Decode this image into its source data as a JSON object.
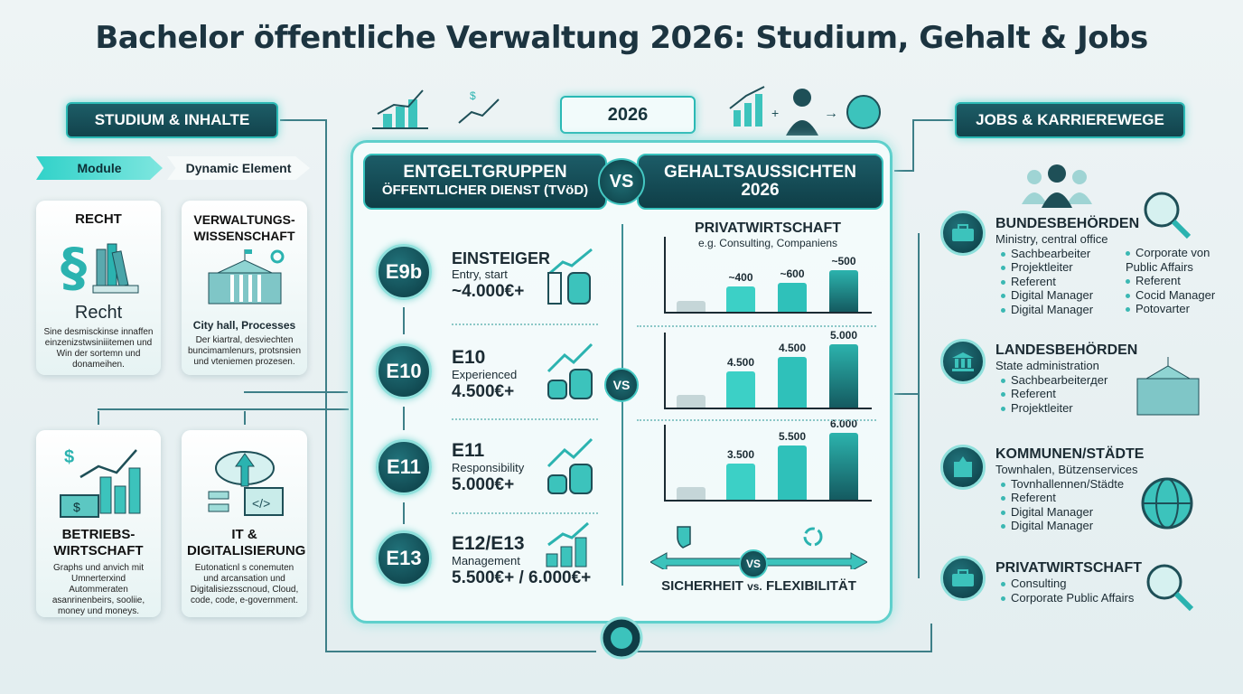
{
  "title": "Bachelor öffentliche Verwaltung 2026: Studium, Gehalt & Jobs",
  "left": {
    "header": "STUDIUM & INHALTE",
    "chevrons": [
      "Module",
      "Dynamic Element"
    ],
    "cards": [
      {
        "title": "RECHT",
        "subtitle": "Recht",
        "text": "Sine desmisckinse innaffen einzenizstwsiniiitemen und Win der sortemn und donameihen.",
        "icon": "paragraph-books-icon"
      },
      {
        "title": "VERWALTUNGS-WISSENSCHAFT",
        "subtitle": "City hall, Processes",
        "text": "Der kiartral, desviechten buncimamlenurs, protsnsien und vteniemen prozesen.",
        "icon": "city-hall-icon"
      },
      {
        "title": "BETRIEBS-WIRTSCHAFT",
        "text": "Graphs und anvich mit Umnerterxind Autommeraten asanrinenbeirs, sooliie, money und moneys.",
        "icon": "money-chart-icon"
      },
      {
        "title": "IT & DIGITALISIERUNG",
        "text": "Eutonaticnl s conemuten und arcansation und Digitalisiezsscnoud, Cloud, code, code, e-government.",
        "icon": "cloud-code-icon"
      }
    ]
  },
  "center": {
    "year_tab": "2026",
    "header_left": [
      "ENTGELTGRUPPEN",
      "ÖFFENTLICHER DIENST (TVöD)"
    ],
    "vs": "VS",
    "header_right": [
      "GEHALTSAUSSICHTEN",
      "2026"
    ],
    "grades": [
      {
        "badge": "E9b",
        "title": "EINSTEIGER",
        "desc": "Entry, start",
        "salary": "~4.000€+"
      },
      {
        "badge": "E10",
        "title": "E10",
        "desc": "Experienced",
        "salary": "4.500€+"
      },
      {
        "badge": "E11",
        "title": "E11",
        "desc": "Responsibility",
        "salary": "5.000€+"
      },
      {
        "badge": "E13",
        "title": "E12/E13",
        "desc": "Management",
        "salary": "5.500€+ / 6.000€+"
      }
    ],
    "private": {
      "title": "PRIVATWIRTSCHAFT",
      "subtitle": "e.g. Consulting, Companiens",
      "rows": [
        {
          "labels": [
            "",
            "~400",
            "~600",
            "~500"
          ]
        },
        {
          "labels": [
            "",
            "4.500",
            "4.500",
            "5.000"
          ]
        },
        {
          "labels": [
            "",
            "3.500",
            "5.500",
            "6.000"
          ]
        }
      ]
    },
    "tradeoff": {
      "left": "SICHERHEIT",
      "vs": "vs.",
      "right": "FLEXIBILITÄT",
      "badge": "VS"
    }
  },
  "right": {
    "header": "JOBS & KARRIEREWEGE",
    "groups": [
      {
        "title": "BUNDESBEHÖRDEN",
        "subtitle": "Ministry, central office",
        "items": [
          "Sachbearbeiter",
          "Projektleiter",
          "Referent",
          "Digital Manager",
          "Digital Manager"
        ],
        "items2": [
          "Corporate von Public Affairs",
          "Referent",
          "Cocid Manager",
          "Potovarter"
        ]
      },
      {
        "title": "LANDESBEHÖRDEN",
        "subtitle": "State administration",
        "items": [
          "Sachbearbeiterдer",
          "Referent",
          "Projektleiter"
        ]
      },
      {
        "title": "KOMMUNEN/STÄDTE",
        "subtitle": "Townhalen, Bützenservices",
        "items": [
          "Tovnhallennen/Städte",
          "Referent",
          "Digital Manager",
          "Digital Manager"
        ]
      },
      {
        "title": "PRIVATWIRTSCHAFT",
        "items": [
          "Consulting",
          "Corporate Public Affairs"
        ]
      }
    ]
  },
  "colors": {
    "accent": "#2bbcb6",
    "dark": "#0f3e47",
    "background": "#e9f2f3"
  }
}
